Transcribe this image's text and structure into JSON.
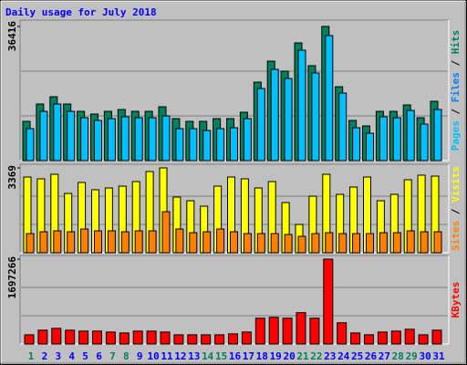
{
  "chart_data": [
    {
      "type": "bar",
      "title": "Daily usage for July 2018",
      "ylim": [
        0,
        36416
      ],
      "yticks": [
        36416
      ],
      "legend": [
        {
          "text": "Pages",
          "color": "#00c0ff"
        },
        {
          "text": "/",
          "color": "#000000"
        },
        {
          "text": "Files",
          "color": "#0080ff"
        },
        {
          "text": "/",
          "color": "#000000"
        },
        {
          "text": "Hits",
          "color": "#00805c"
        }
      ],
      "series": [
        {
          "color": "#00805c",
          "values": [
            10651,
            15358,
            17340,
            15358,
            13376,
            12633,
            13376,
            13871,
            13376,
            13376,
            14615,
            11395,
            10651,
            10651,
            11395,
            11395,
            13128,
            21303,
            27000,
            24275,
            31956,
            25762,
            36416,
            20065,
            10899,
            9413,
            13376,
            13376,
            15110,
            11642,
            16101
          ]
        },
        {
          "color": "#00c0ff",
          "values": [
            8670,
            13376,
            15358,
            13376,
            11642,
            10899,
            11395,
            11890,
            11642,
            11642,
            12138,
            8670,
            8670,
            8174,
            8670,
            8918,
            11395,
            19569,
            24771,
            22294,
            29973,
            23780,
            33936,
            18331,
            8918,
            7431,
            11890,
            11642,
            13624,
            9909,
            13872
          ]
        }
      ]
    },
    {
      "type": "bar",
      "ylim": [
        0,
        3369
      ],
      "yticks": [
        3369
      ],
      "legend": [
        {
          "text": "Sites",
          "color": "#ff8000"
        },
        {
          "text": "/",
          "color": "#000000"
        },
        {
          "text": "Visits",
          "color": "#ffff00"
        }
      ],
      "series": [
        {
          "color": "#ffff00",
          "values": [
            3007,
            2935,
            3116,
            2355,
            2790,
            2500,
            2572,
            2645,
            2826,
            3224,
            3369,
            2210,
            2065,
            1848,
            2645,
            3007,
            2935,
            2572,
            2826,
            1993,
            1123,
            2246,
            3116,
            2319,
            2609,
            3007,
            2065,
            2319,
            2898,
            3079,
            3043
          ]
        },
        {
          "color": "#ff8000",
          "values": [
            761,
            833,
            870,
            833,
            942,
            870,
            870,
            833,
            870,
            870,
            1630,
            942,
            797,
            833,
            942,
            833,
            761,
            761,
            761,
            725,
            652,
            761,
            797,
            761,
            761,
            761,
            797,
            797,
            870,
            833,
            833
          ]
        }
      ]
    },
    {
      "type": "bar",
      "ylim": [
        0,
        1697266
      ],
      "yticks": [
        1697266
      ],
      "legend": [
        {
          "text": "KBytes",
          "color": "#ff0000"
        }
      ],
      "categories": [
        "1",
        "2",
        "3",
        "4",
        "5",
        "6",
        "7",
        "8",
        "9",
        "10",
        "11",
        "12",
        "13",
        "14",
        "15",
        "16",
        "17",
        "18",
        "19",
        "20",
        "21",
        "22",
        "23",
        "24",
        "25",
        "26",
        "27",
        "28",
        "29",
        "30",
        "31"
      ],
      "category_colors": [
        "#00805c",
        "#0000ff",
        "#0000ff",
        "#0000ff",
        "#0000ff",
        "#0000ff",
        "#00805c",
        "#00805c",
        "#0000ff",
        "#0000ff",
        "#0000ff",
        "#0000ff",
        "#0000ff",
        "#00805c",
        "#00805c",
        "#0000ff",
        "#0000ff",
        "#0000ff",
        "#0000ff",
        "#0000ff",
        "#00805c",
        "#00805c",
        "#0000ff",
        "#0000ff",
        "#0000ff",
        "#0000ff",
        "#0000ff",
        "#00805c",
        "#00805c",
        "#0000ff",
        "#0000ff"
      ],
      "series": [
        {
          "color": "#ff0000",
          "values": [
            184490,
            276735,
            313633,
            276735,
            258286,
            258286,
            239837,
            221388,
            258286,
            258286,
            239837,
            184490,
            184490,
            184490,
            184490,
            202939,
            239837,
            516572,
            535021,
            516572,
            627266,
            516572,
            1697266,
            424327,
            221388,
            184490,
            239837,
            258286,
            295184,
            184490,
            276735
          ]
        }
      ]
    }
  ]
}
